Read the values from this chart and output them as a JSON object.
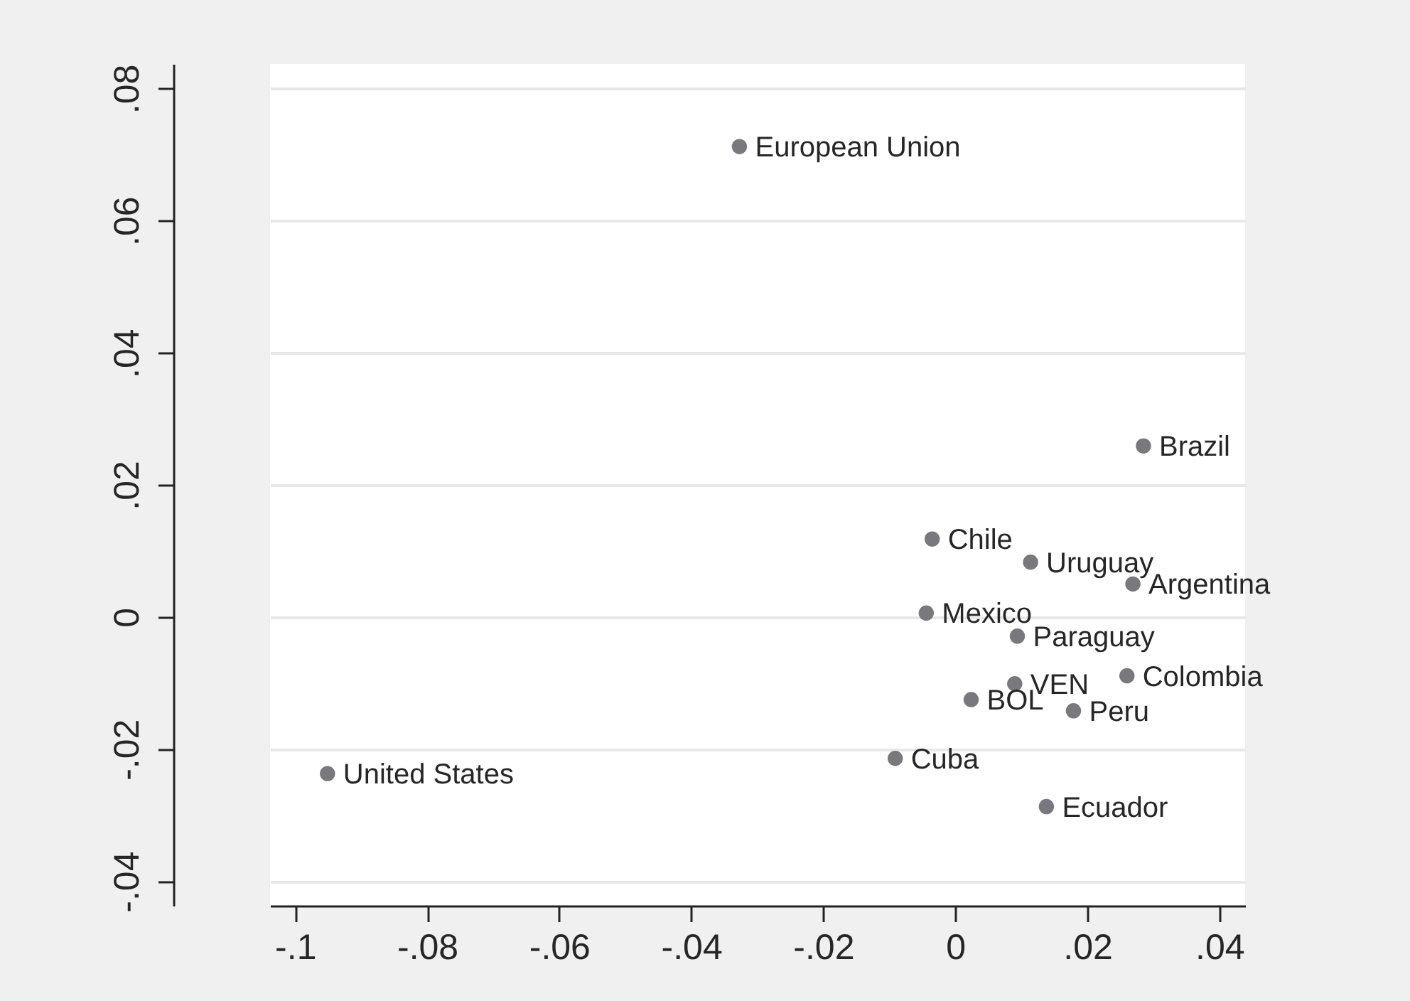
{
  "chart_data": {
    "type": "scatter",
    "color": "#78787d",
    "marker": "circle",
    "grid": "y",
    "x": [
      -0.0327,
      0.0285,
      -0.0035,
      0.0114,
      0.0269,
      -0.0044,
      0.0094,
      0.009,
      0.026,
      0.0024,
      0.0179,
      -0.0091,
      0.0138,
      -0.0951
    ],
    "values": [
      0.0712,
      0.0259,
      0.0118,
      0.0083,
      0.005,
      0.0006,
      -0.0029,
      -0.0101,
      -0.0089,
      -0.0125,
      -0.0142,
      -0.0214,
      -0.0287,
      -0.0237
    ],
    "xlim": [
      -0.1038,
      0.0439
    ],
    "ylim": [
      -0.0437,
      0.0837
    ],
    "xticks": [
      {
        "value": -0.1,
        "label": "-.1"
      },
      {
        "value": -0.08,
        "label": "-.08"
      },
      {
        "value": -0.06,
        "label": "-.06"
      },
      {
        "value": -0.04,
        "label": "-.04"
      },
      {
        "value": -0.02,
        "label": "-.02"
      },
      0,
      {
        "value": 0.02,
        "label": ".02"
      },
      {
        "value": 0.04,
        "label": ".04"
      }
    ],
    "yticks": [
      {
        "value": -0.04,
        "label": "-.04"
      },
      {
        "value": -0.02,
        "label": "-.02"
      },
      0,
      {
        "value": 0.02,
        "label": ".02"
      },
      {
        "value": 0.04,
        "label": ".04"
      },
      {
        "value": 0.06,
        "label": ".06"
      },
      {
        "value": 0.08,
        "label": ".08"
      }
    ],
    "annotations": [
      {
        "text": "European Union",
        "x": -0.0327,
        "y": 0.0712
      },
      {
        "text": "Brazil",
        "x": 0.0285,
        "y": 0.0259
      },
      {
        "text": "Chile",
        "x": -0.0035,
        "y": 0.0118
      },
      {
        "text": "Uruguay",
        "x": 0.0114,
        "y": 0.0083
      },
      {
        "text": "Argentina",
        "x": 0.0269,
        "y": 0.005
      },
      {
        "text": "Mexico",
        "x": -0.0044,
        "y": 0.0006
      },
      {
        "text": "Paraguay",
        "x": 0.0094,
        "y": -0.0029
      },
      {
        "text": "VEN",
        "x": 0.009,
        "y": -0.0101
      },
      {
        "text": "Colombia",
        "x": 0.026,
        "y": -0.0089
      },
      {
        "text": "BOL",
        "x": 0.0024,
        "y": -0.0125
      },
      {
        "text": "Peru",
        "x": 0.0179,
        "y": -0.0142
      },
      {
        "text": "Cuba",
        "x": -0.0091,
        "y": -0.0214
      },
      {
        "text": "Ecuador",
        "x": 0.0138,
        "y": -0.0287
      },
      {
        "text": "United States",
        "x": -0.0951,
        "y": -0.0237
      }
    ]
  }
}
